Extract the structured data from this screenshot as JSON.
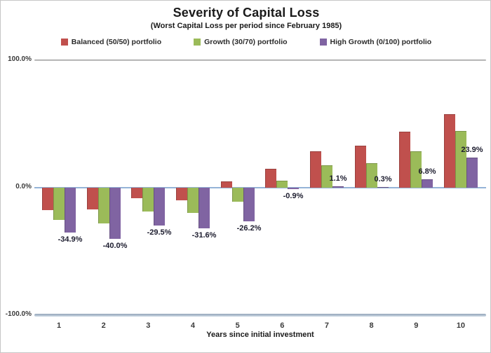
{
  "chart_data": {
    "type": "bar",
    "title": "Severity of Capital Loss",
    "subtitle": "(Worst Capital Loss per period since February 1985)",
    "xlabel": "Years since initial investment",
    "categories": [
      "1",
      "2",
      "3",
      "4",
      "5",
      "6",
      "7",
      "8",
      "9",
      "10"
    ],
    "series": [
      {
        "name": "Balanced (50/50) portfolio",
        "color": "#c0504d",
        "border_color": "#99403e",
        "values": [
          -17.8,
          -17.0,
          -8.2,
          -9.7,
          4.7,
          15.0,
          28.4,
          33.0,
          44.0,
          57.7
        ]
      },
      {
        "name": "Growth (30/70) portfolio",
        "color": "#9bbb59",
        "border_color": "#7c9647",
        "values": [
          -25.5,
          -28.0,
          -18.7,
          -19.8,
          -11.1,
          5.5,
          17.6,
          19.2,
          28.4,
          44.3
        ]
      },
      {
        "name": "High Growth (0/100) portfolio",
        "color": "#8064a2",
        "border_color": "#665082",
        "values": [
          -34.9,
          -40.0,
          -29.5,
          -31.6,
          -26.2,
          -0.9,
          1.1,
          0.3,
          6.8,
          23.9
        ],
        "show_labels": true,
        "data_labels": [
          "-34.9%",
          "-40.0%",
          "-29.5%",
          "-31.6%",
          "-26.2%",
          "-0.9%",
          "1.1%",
          "0.3%",
          "6.8%",
          "23.9%"
        ]
      }
    ],
    "ylim": [
      -100,
      100
    ],
    "y_ticks": [
      {
        "label": "100.0%",
        "value": 100
      },
      {
        "label": "0.0%",
        "value": 0
      },
      {
        "label": "-100.0%",
        "value": -100
      }
    ],
    "zero_line_color": "#95b3d7",
    "grid_on": false,
    "legend_position": "top"
  }
}
